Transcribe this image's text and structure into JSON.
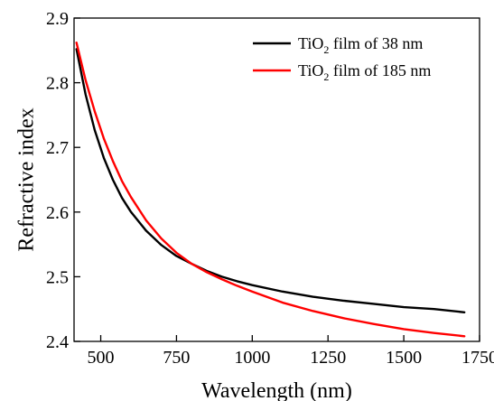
{
  "chart_data": {
    "type": "line",
    "title": "",
    "xlabel": "Wavelength (nm)",
    "ylabel": "Refractive index",
    "xlim": [
      412,
      1750
    ],
    "ylim": [
      2.4,
      2.9
    ],
    "xticks": [
      500,
      750,
      1000,
      1250,
      1500,
      1750
    ],
    "xtick_labels": [
      "500",
      "750",
      "1000",
      "1250",
      "1500",
      "1750"
    ],
    "yticks": [
      2.4,
      2.5,
      2.6,
      2.7,
      2.8,
      2.9
    ],
    "ytick_labels": [
      "2.4",
      "2.5",
      "2.6",
      "2.7",
      "2.8",
      "2.9"
    ],
    "grid": false,
    "legend_position": "top-right",
    "series": [
      {
        "name_prefix": "TiO",
        "name_subscript": "2",
        "name_suffix": " film of 38 nm",
        "color": "#000000",
        "x": [
          420,
          450,
          480,
          510,
          540,
          570,
          600,
          650,
          700,
          750,
          800,
          850,
          900,
          950,
          1000,
          1100,
          1200,
          1300,
          1400,
          1500,
          1600,
          1700
        ],
        "y": [
          2.852,
          2.782,
          2.727,
          2.684,
          2.65,
          2.622,
          2.6,
          2.571,
          2.549,
          2.532,
          2.52,
          2.509,
          2.5,
          2.493,
          2.487,
          2.477,
          2.469,
          2.463,
          2.458,
          2.453,
          2.45,
          2.445
        ]
      },
      {
        "name_prefix": "TiO",
        "name_subscript": "2",
        "name_suffix": " film of 185 nm",
        "color": "#ff0000",
        "x": [
          420,
          450,
          480,
          510,
          540,
          570,
          600,
          650,
          700,
          750,
          800,
          850,
          900,
          950,
          1000,
          1100,
          1200,
          1300,
          1400,
          1500,
          1600,
          1700
        ],
        "y": [
          2.862,
          2.804,
          2.756,
          2.714,
          2.679,
          2.648,
          2.623,
          2.587,
          2.559,
          2.537,
          2.52,
          2.507,
          2.496,
          2.486,
          2.477,
          2.46,
          2.447,
          2.436,
          2.427,
          2.419,
          2.413,
          2.408
        ]
      }
    ]
  }
}
